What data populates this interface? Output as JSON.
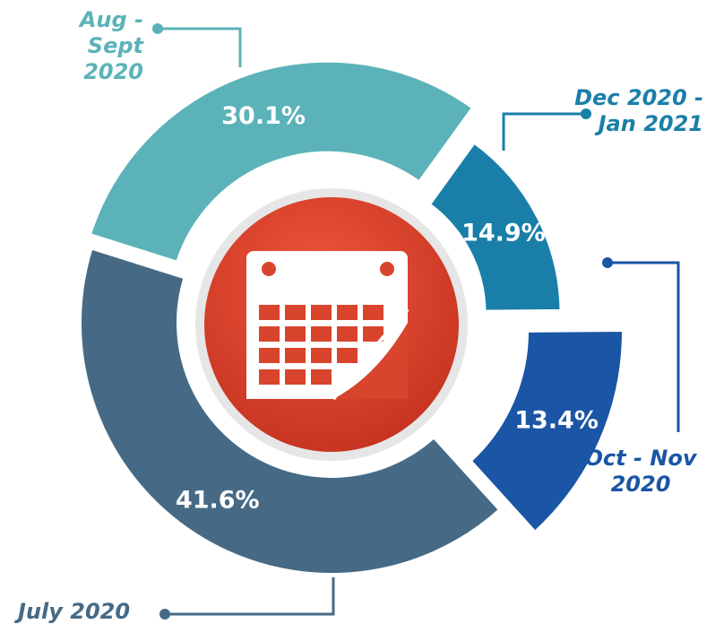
{
  "chart_data": {
    "type": "donut",
    "categories": [
      "Aug - Sept\n2020",
      "Dec 2020 -\nJan 2021",
      "Oct - Nov\n2020",
      "July 2020"
    ],
    "values": [
      30.1,
      14.9,
      13.4,
      41.6
    ],
    "value_labels": [
      "30.1%",
      "14.9%",
      "13.4%",
      "41.6%"
    ],
    "colors": [
      "#5bb3b9",
      "#1a7fa8",
      "#1b55a5",
      "#466a85"
    ]
  }
}
